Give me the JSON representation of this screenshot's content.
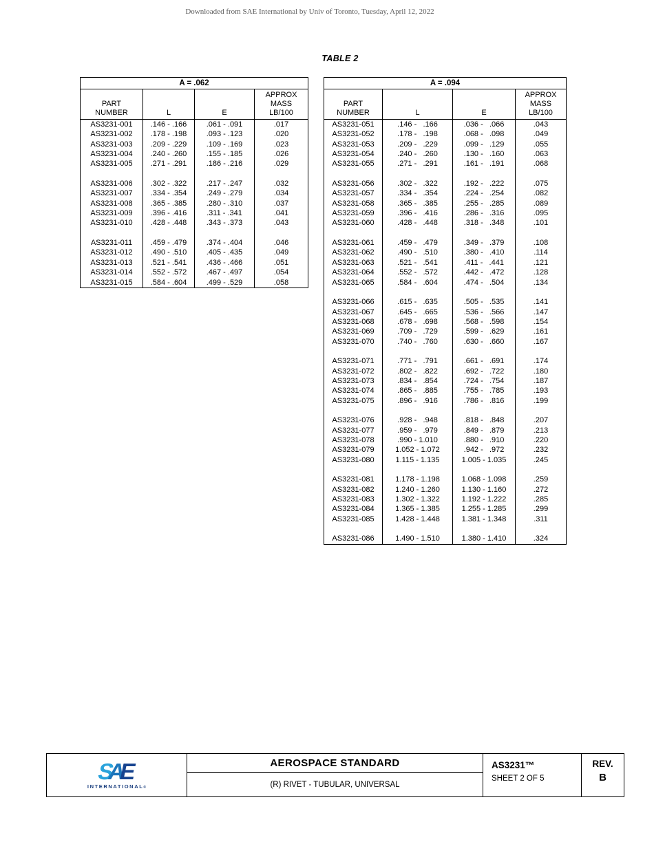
{
  "page": {
    "watermark": "Downloaded from SAE International by Univ of Toronto, Tuesday, April 12, 2022",
    "title": "TABLE 2"
  },
  "tables": [
    {
      "group_header": "A = .062",
      "col_headers": [
        [
          "PART",
          "NUMBER"
        ],
        [
          "L"
        ],
        [
          "E"
        ],
        [
          "APPROX",
          "MASS",
          "LB/100"
        ]
      ],
      "rows": [
        [
          "AS3231-001",
          ".146 - .166",
          ".061 - .091",
          ".017"
        ],
        [
          "AS3231-002",
          ".178 - .198",
          ".093 - .123",
          ".020"
        ],
        [
          "AS3231-003",
          ".209 - .229",
          ".109 - .169",
          ".023"
        ],
        [
          "AS3231-004",
          ".240 - .260",
          ".155 - .185",
          ".026"
        ],
        [
          "AS3231-005",
          ".271 - .291",
          ".186 - .216",
          ".029"
        ],
        null,
        [
          "AS3231-006",
          ".302 - .322",
          ".217 - .247",
          ".032"
        ],
        [
          "AS3231-007",
          ".334 - .354",
          ".249 - .279",
          ".034"
        ],
        [
          "AS3231-008",
          ".365 - .385",
          ".280 - .310",
          ".037"
        ],
        [
          "AS3231-009",
          ".396 - .416",
          ".311 - .341",
          ".041"
        ],
        [
          "AS3231-010",
          ".428 - .448",
          ".343 - .373",
          ".043"
        ],
        null,
        [
          "AS3231-011",
          ".459 - .479",
          ".374 - .404",
          ".046"
        ],
        [
          "AS3231-012",
          ".490 - .510",
          ".405 - .435",
          ".049"
        ],
        [
          "AS3231-013",
          ".521 - .541",
          ".436 - .466",
          ".051"
        ],
        [
          "AS3231-014",
          ".552 - .572",
          ".467 - .497",
          ".054"
        ],
        [
          "AS3231-015",
          ".584 - .604",
          ".499 - .529",
          ".058"
        ]
      ]
    },
    {
      "group_header": "A = .094",
      "col_headers": [
        [
          "PART",
          "NUMBER"
        ],
        [
          "L"
        ],
        [
          "E"
        ],
        [
          "APPROX",
          "MASS",
          "LB/100"
        ]
      ],
      "rows": [
        [
          "AS3231-051",
          ".146 -   .166",
          ".036 -   .066",
          ".043"
        ],
        [
          "AS3231-052",
          ".178 -   .198",
          ".068 -   .098",
          ".049"
        ],
        [
          "AS3231-053",
          ".209 -   .229",
          ".099 -   .129",
          ".055"
        ],
        [
          "AS3231-054",
          ".240 -   .260",
          ".130 -   .160",
          ".063"
        ],
        [
          "AS3231-055",
          ".271 -   .291",
          ".161 -   .191",
          ".068"
        ],
        null,
        [
          "AS3231-056",
          ".302 -   .322",
          ".192 -   .222",
          ".075"
        ],
        [
          "AS3231-057",
          ".334 -   .354",
          ".224 -   .254",
          ".082"
        ],
        [
          "AS3231-058",
          ".365 -   .385",
          ".255 -   .285",
          ".089"
        ],
        [
          "AS3231-059",
          ".396 -   .416",
          ".286 -   .316",
          ".095"
        ],
        [
          "AS3231-060",
          ".428 -   .448",
          ".318 -   .348",
          ".101"
        ],
        null,
        [
          "AS3231-061",
          ".459 -   .479",
          ".349 -   .379",
          ".108"
        ],
        [
          "AS3231-062",
          ".490 -   .510",
          ".380 -   .410",
          ".114"
        ],
        [
          "AS3231-063",
          ".521 -   .541",
          ".411 -   .441",
          ".121"
        ],
        [
          "AS3231-064",
          ".552 -   .572",
          ".442 -   .472",
          ".128"
        ],
        [
          "AS3231-065",
          ".584 -   .604",
          ".474 -   .504",
          ".134"
        ],
        null,
        [
          "AS3231-066",
          ".615 -   .635",
          ".505 -   .535",
          ".141"
        ],
        [
          "AS3231-067",
          ".645 -   .665",
          ".536 -   .566",
          ".147"
        ],
        [
          "AS3231-068",
          ".678 -   .698",
          ".568 -   .598",
          ".154"
        ],
        [
          "AS3231-069",
          ".709 -   .729",
          ".599 -   .629",
          ".161"
        ],
        [
          "AS3231-070",
          ".740 -   .760",
          ".630 -   .660",
          ".167"
        ],
        null,
        [
          "AS3231-071",
          ".771 -   .791",
          ".661 -   .691",
          ".174"
        ],
        [
          "AS3231-072",
          ".802 -   .822",
          ".692 -   .722",
          ".180"
        ],
        [
          "AS3231-073",
          ".834 -   .854",
          ".724 -   .754",
          ".187"
        ],
        [
          "AS3231-074",
          ".865 -   .885",
          ".755 -   .785",
          ".193"
        ],
        [
          "AS3231-075",
          ".896 -   .916",
          ".786 -   .816",
          ".199"
        ],
        null,
        [
          "AS3231-076",
          ".928 -   .948",
          ".818 -   .848",
          ".207"
        ],
        [
          "AS3231-077",
          ".959 -   .979",
          ".849 -   .879",
          ".213"
        ],
        [
          "AS3231-078",
          ".990 - 1.010",
          ".880 -   .910",
          ".220"
        ],
        [
          "AS3231-079",
          "1.052 - 1.072",
          ".942 -   .972",
          ".232"
        ],
        [
          "AS3231-080",
          "1.115 - 1.135",
          "1.005 - 1.035",
          ".245"
        ],
        null,
        [
          "AS3231-081",
          "1.178 - 1.198",
          "1.068 - 1.098",
          ".259"
        ],
        [
          "AS3231-082",
          "1.240 - 1.260",
          "1.130 - 1.160",
          ".272"
        ],
        [
          "AS3231-083",
          "1.302 - 1.322",
          "1.192 - 1.222",
          ".285"
        ],
        [
          "AS3231-084",
          "1.365 - 1.385",
          "1.255 - 1.285",
          ".299"
        ],
        [
          "AS3231-085",
          "1.428 - 1.448",
          "1.381 - 1.348",
          ".311"
        ],
        null,
        [
          "AS3231-086",
          "1.490 - 1.510",
          "1.380 - 1.410",
          ".324"
        ]
      ]
    }
  ],
  "footer": {
    "logo_letters": [
      "S",
      "A",
      "E"
    ],
    "logo_sub": "INTERNATIONAL",
    "logo_reg": "®",
    "title": "AEROSPACE STANDARD",
    "subtitle": "(R) RIVET - TUBULAR, UNIVERSAL",
    "doc_number": "AS3231™",
    "sheet": "SHEET 2 OF 5",
    "rev_label": "REV.",
    "rev_value": "B"
  },
  "colors": {
    "sae_cyan": "#2aa3db",
    "sae_blue": "#1b75bb",
    "sae_navy": "#16438f",
    "logo_text_navy": "#1a3e7e",
    "watermark_gray": "#5a5a5a",
    "border_black": "#000000"
  }
}
